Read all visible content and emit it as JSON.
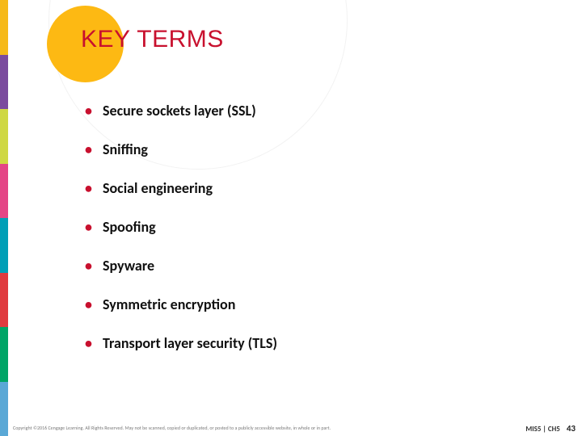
{
  "title": {
    "text": "KEY TERMS",
    "color": "#c8102e",
    "fontsize": 30
  },
  "bullets": {
    "items": [
      "Secure sockets layer (SSL)",
      "Sniffing",
      "Social engineering",
      "Spoofing",
      "Spyware",
      "Symmetric encryption",
      "Transport layer security (TLS)"
    ],
    "bullet_color": "#c8102e",
    "text_color": "#111111",
    "fontsize": 18,
    "fontweight": 700
  },
  "decor": {
    "accent_circle_color": "#fdb913",
    "background_circle_color": "#ffffff",
    "background_circle_border": "#f0f0f0"
  },
  "left_stripes": [
    "#f6b918",
    "#7b4b9e",
    "#cfd843",
    "#e44586",
    "#009fb7",
    "#e03a3e",
    "#00a566",
    "#5aa8d6"
  ],
  "footer": {
    "copyright": "Copyright ©2016 Cengage Learning. All Rights Reserved. May not be scanned, copied or duplicated, or posted to a publicly accessible website, in whole or in part.",
    "chapter": "MIS5 | CH5",
    "page": "43"
  }
}
